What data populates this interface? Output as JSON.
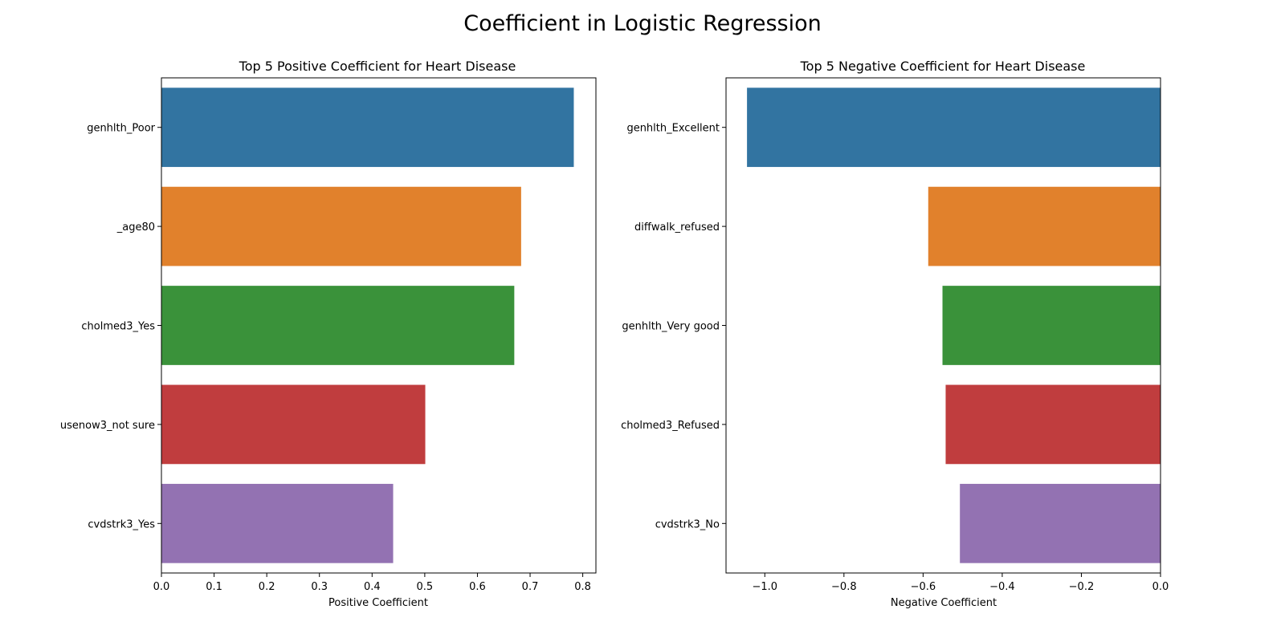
{
  "figure": {
    "title": "Coefficient in Logistic Regression"
  },
  "chart_data": [
    {
      "type": "bar",
      "orientation": "horizontal",
      "title": "Top 5 Positive Coefficient for Heart Disease",
      "xlabel": "Positive Coefficient",
      "ylabel": "",
      "categories": [
        "genhlth_Poor",
        "_age80",
        "cholmed3_Yes",
        "usenow3_not sure",
        "cvdstrk3_Yes"
      ],
      "values": [
        0.783,
        0.683,
        0.67,
        0.501,
        0.44
      ],
      "colors": [
        "#3274a1",
        "#e1812c",
        "#3a923a",
        "#c03d3e",
        "#9372b2"
      ],
      "xlim": [
        0,
        0.825
      ],
      "xticks": [
        0.0,
        0.1,
        0.2,
        0.3,
        0.4,
        0.5,
        0.6,
        0.7,
        0.8
      ],
      "xtick_labels": [
        "0.0",
        "0.1",
        "0.2",
        "0.3",
        "0.4",
        "0.5",
        "0.6",
        "0.7",
        "0.8"
      ],
      "grid": false
    },
    {
      "type": "bar",
      "orientation": "horizontal",
      "title": "Top 5 Negative Coefficient for Heart Disease",
      "xlabel": "Negative Coefficient",
      "ylabel": "",
      "categories": [
        "genhlth_Excellent",
        "diffwalk_refused",
        "genhlth_Very good",
        "cholmed3_Refused",
        "cvdstrk3_No"
      ],
      "values": [
        -1.045,
        -0.587,
        -0.551,
        -0.543,
        -0.507
      ],
      "colors": [
        "#3274a1",
        "#e1812c",
        "#3a923a",
        "#c03d3e",
        "#9372b2"
      ],
      "xlim": [
        -1.098,
        0.0
      ],
      "xticks": [
        -1.0,
        -0.8,
        -0.6,
        -0.4,
        -0.2,
        0.0
      ],
      "xtick_labels": [
        "−1.0",
        "−0.8",
        "−0.6",
        "−0.4",
        "−0.2",
        "0.0"
      ],
      "grid": false
    }
  ]
}
